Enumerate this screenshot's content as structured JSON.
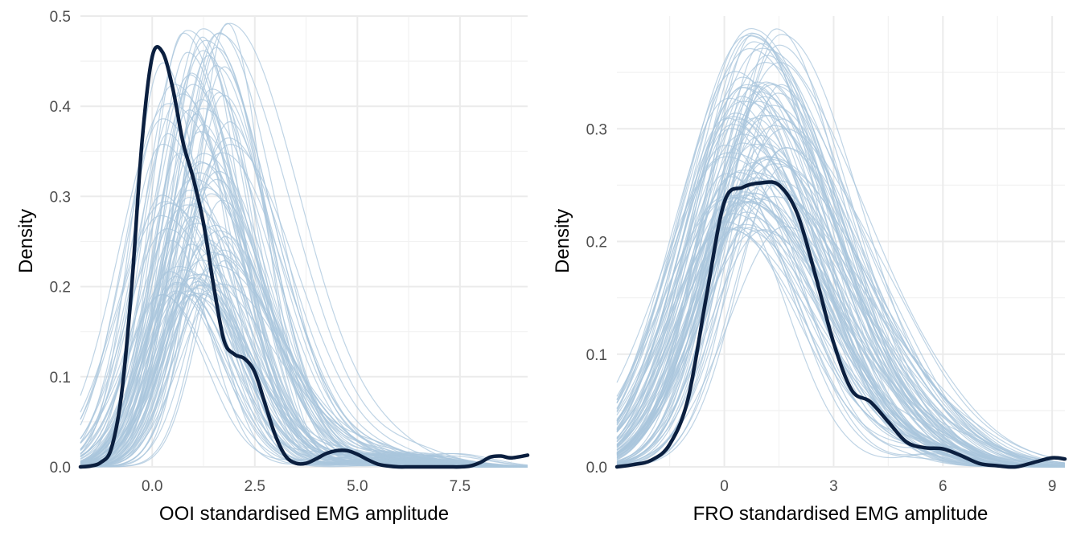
{
  "colors": {
    "observed": "#0b1f3f",
    "replicates": "#aac6dc",
    "grid_major": "#ebebeb",
    "grid_minor": "#f2f2f2",
    "tick_text": "#4d4d4d"
  },
  "chart_data": [
    {
      "type": "line",
      "panel": "left",
      "xlabel": "OOI standardised EMG amplitude",
      "ylabel": "Density",
      "xlim": [
        -1.75,
        9.15
      ],
      "ylim": [
        0,
        0.5
      ],
      "x_ticks": [
        0,
        2.5,
        5,
        7.5
      ],
      "x_tick_labels": [
        "0.0",
        "2.5",
        "5.0",
        "7.5"
      ],
      "y_ticks": [
        0,
        0.1,
        0.2,
        0.3,
        0.4,
        0.5
      ],
      "y_tick_labels": [
        "0.0",
        "0.1",
        "0.2",
        "0.3",
        "0.4",
        "0.5"
      ],
      "grid": true,
      "legend": "none",
      "replicates": {
        "count": 100,
        "mode_x_range": [
          0.2,
          1.9
        ],
        "peak_density_range": [
          0.19,
          0.5
        ],
        "spread_range": [
          0.7,
          1.2
        ]
      },
      "observed_series": {
        "x": [
          -1.75,
          -1.5,
          -1.25,
          -1.0,
          -0.75,
          -0.5,
          -0.25,
          0.0,
          0.25,
          0.5,
          0.75,
          1.0,
          1.25,
          1.5,
          1.75,
          2.0,
          2.25,
          2.5,
          2.75,
          3.0,
          3.25,
          3.5,
          3.75,
          4.0,
          4.25,
          4.5,
          4.75,
          5.0,
          5.25,
          5.5,
          5.75,
          6.0,
          6.25,
          6.5,
          6.75,
          7.0,
          7.25,
          7.5,
          7.75,
          8.0,
          8.25,
          8.5,
          8.75,
          9.15
        ],
        "y": [
          0.0,
          0.001,
          0.005,
          0.02,
          0.08,
          0.2,
          0.36,
          0.455,
          0.46,
          0.42,
          0.36,
          0.32,
          0.27,
          0.2,
          0.14,
          0.125,
          0.12,
          0.105,
          0.07,
          0.035,
          0.012,
          0.004,
          0.004,
          0.009,
          0.015,
          0.018,
          0.018,
          0.014,
          0.008,
          0.003,
          0.001,
          0.0,
          0.0,
          0.0,
          0.0,
          0.0,
          0.0,
          0.0,
          0.001,
          0.005,
          0.011,
          0.012,
          0.01,
          0.013
        ]
      }
    },
    {
      "type": "line",
      "panel": "right",
      "xlabel": "FRO standardised EMG amplitude",
      "ylabel": "Density",
      "xlim": [
        -2.95,
        9.35
      ],
      "ylim": [
        0,
        0.4
      ],
      "x_ticks": [
        0,
        3,
        6,
        9
      ],
      "x_tick_labels": [
        "0",
        "3",
        "6",
        "9"
      ],
      "y_ticks": [
        0,
        0.1,
        0.2,
        0.3
      ],
      "y_tick_labels": [
        "0.0",
        "0.1",
        "0.2",
        "0.3"
      ],
      "grid": true,
      "legend": "none",
      "replicates": {
        "count": 100,
        "mode_x_range": [
          0.0,
          1.7
        ],
        "peak_density_range": [
          0.21,
          0.39
        ],
        "spread_range": [
          1.2,
          1.9
        ]
      },
      "observed_series": {
        "x": [
          -2.95,
          -2.5,
          -2.0,
          -1.5,
          -1.0,
          -0.5,
          0.0,
          0.5,
          1.0,
          1.5,
          2.0,
          2.5,
          3.0,
          3.5,
          4.0,
          4.5,
          5.0,
          5.5,
          6.0,
          6.5,
          7.0,
          7.5,
          8.0,
          8.5,
          9.0,
          9.35
        ],
        "y": [
          0.0,
          0.002,
          0.006,
          0.02,
          0.06,
          0.15,
          0.235,
          0.248,
          0.252,
          0.25,
          0.225,
          0.17,
          0.11,
          0.068,
          0.058,
          0.04,
          0.022,
          0.017,
          0.016,
          0.01,
          0.003,
          0.001,
          0.0,
          0.004,
          0.008,
          0.007
        ]
      }
    }
  ]
}
